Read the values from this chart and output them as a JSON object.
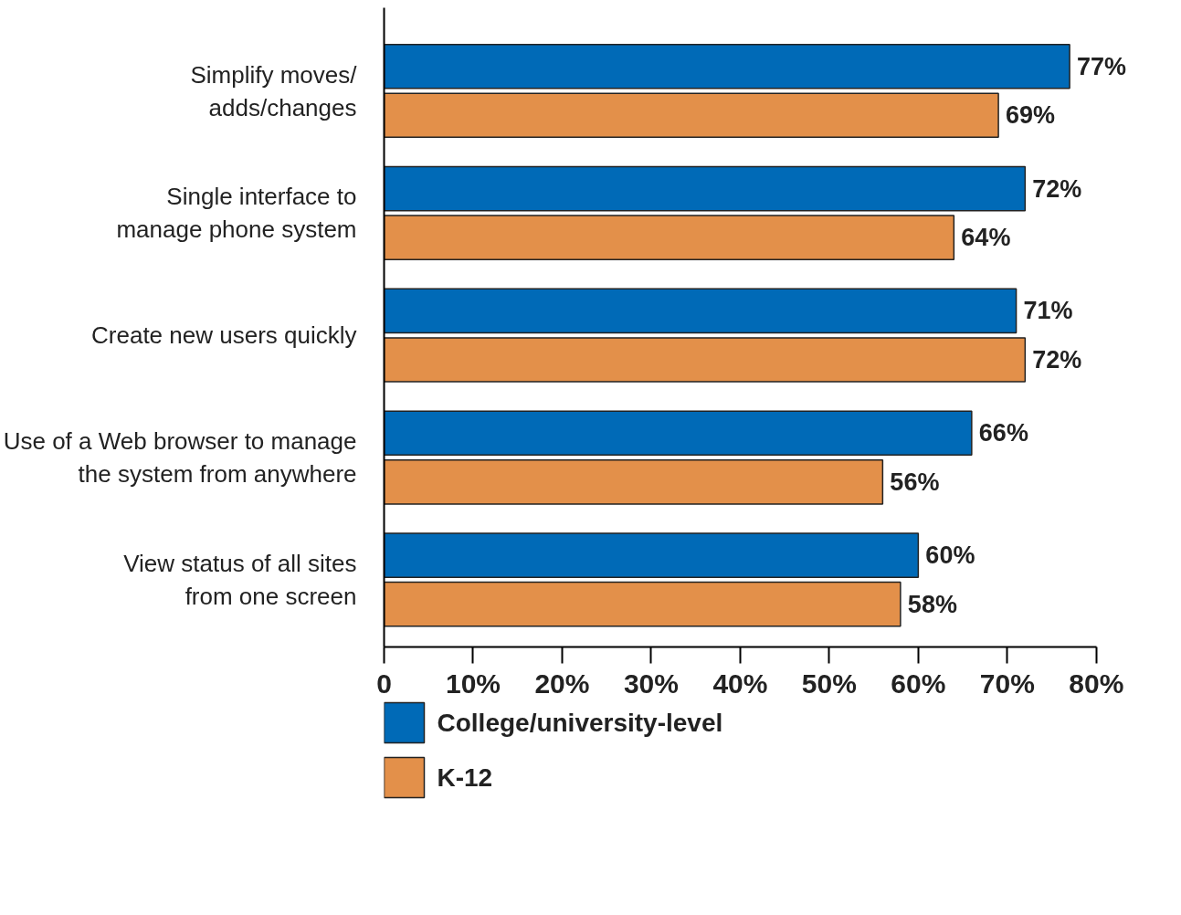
{
  "chart_data": {
    "type": "bar",
    "orientation": "horizontal",
    "categories": [
      "Simplify moves/\nadds/changes",
      "Single interface to\nmanage phone system",
      "Create new users quickly",
      "Use of a Web browser to manage\nthe system from anywhere",
      "View status of all sites\nfrom one screen"
    ],
    "series": [
      {
        "name": "College/university-level",
        "color": "#006ab7",
        "values": [
          77,
          72,
          71,
          66,
          60
        ],
        "value_labels": [
          "77%",
          "72%",
          "71%",
          "66%",
          "60%"
        ]
      },
      {
        "name": "K-12",
        "color": "#e3904a",
        "values": [
          69,
          64,
          72,
          56,
          58
        ],
        "value_labels": [
          "69%",
          "64%",
          "72%",
          "56%",
          "58%"
        ]
      }
    ],
    "xlim": [
      0,
      80
    ],
    "xticks": [
      0,
      {
        "value": 10,
        "label": "10%"
      },
      {
        "value": 20,
        "label": "20%"
      },
      {
        "value": 30,
        "label": "30%"
      },
      {
        "value": 40,
        "label": "40%"
      },
      {
        "value": 50,
        "label": "50%"
      },
      {
        "value": 60,
        "label": "60%"
      },
      {
        "value": 70,
        "label": "70%"
      },
      {
        "value": 80,
        "label": "80%"
      }
    ],
    "grid": false,
    "legend": "bottom left"
  }
}
